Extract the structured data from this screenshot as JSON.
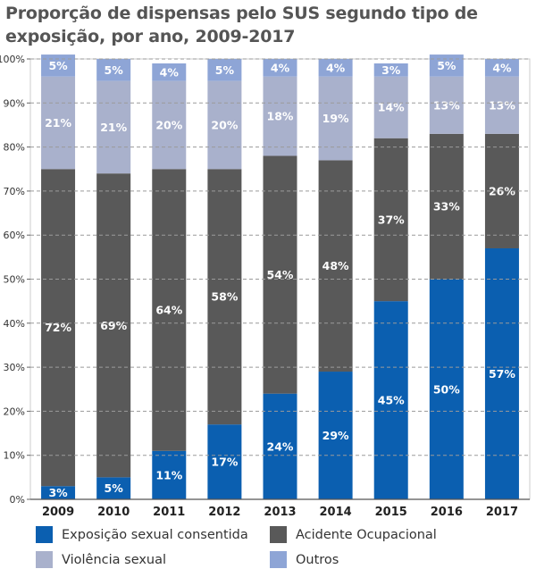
{
  "chart_data": {
    "type": "bar",
    "stacked": true,
    "title": "Proporção de dispensas pelo SUS segundo tipo de exposição, por ano, 2009-2017",
    "categories": [
      "2009",
      "2010",
      "2011",
      "2012",
      "2013",
      "2014",
      "2015",
      "2016",
      "2017"
    ],
    "series": [
      {
        "name": "Exposição sexual consentida",
        "color": "#0b5fb0",
        "values": [
          3,
          5,
          11,
          17,
          24,
          29,
          45,
          50,
          57
        ],
        "labels": [
          "3%",
          "5%",
          "11%",
          "17%",
          "24%",
          "29%",
          "45%",
          "50%",
          "57%"
        ]
      },
      {
        "name": "Acidente Ocupacional",
        "color": "#595959",
        "values": [
          72,
          69,
          64,
          58,
          54,
          48,
          37,
          33,
          26
        ],
        "labels": [
          "72%",
          "69%",
          "64%",
          "58%",
          "54%",
          "48%",
          "37%",
          "33%",
          "26%"
        ]
      },
      {
        "name": "Violência sexual",
        "color": "#a9b1cc",
        "values": [
          21,
          21,
          20,
          20,
          18,
          19,
          14,
          13,
          13
        ],
        "labels": [
          "21%",
          "21%",
          "20%",
          "20%",
          "18%",
          "19%",
          "14%",
          "13%",
          "13%"
        ]
      },
      {
        "name": "Outros",
        "color": "#8ea5d6",
        "values": [
          5,
          5,
          4,
          5,
          4,
          4,
          3,
          5,
          4
        ],
        "labels": [
          "5%",
          "5%",
          "4%",
          "5%",
          "4%",
          "4%",
          "3%",
          "5%",
          "4%"
        ]
      }
    ],
    "ylim": [
      0,
      100
    ],
    "yticks": [
      "0%",
      "10%",
      "20%",
      "30%",
      "40%",
      "50%",
      "60%",
      "70%",
      "80%",
      "90%",
      "100%"
    ],
    "grid": true,
    "legend_position": "bottom"
  }
}
